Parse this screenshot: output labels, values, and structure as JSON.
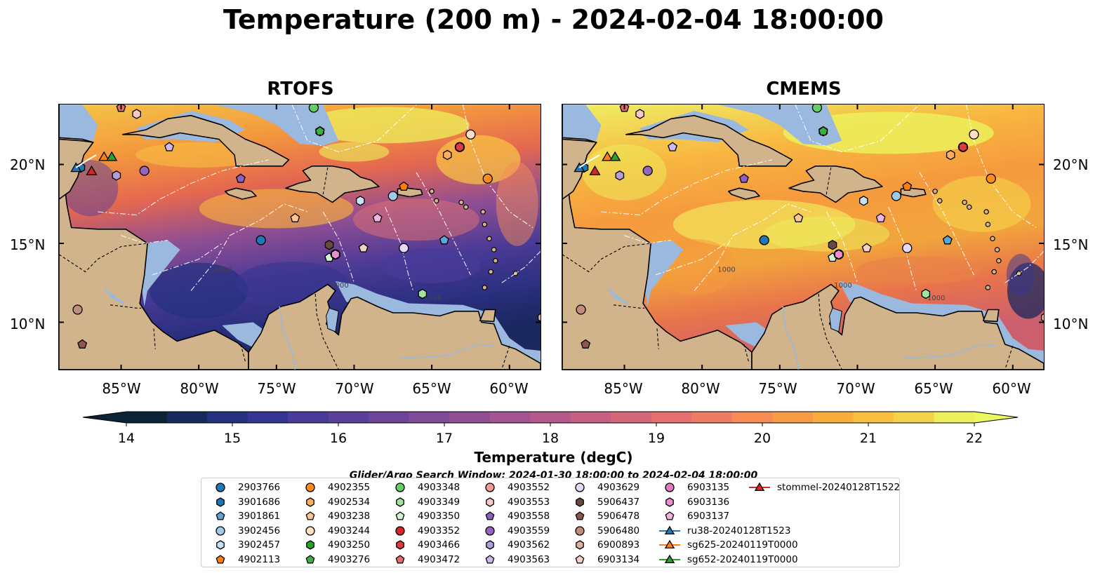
{
  "title": "Temperature (200 m) - 2024-02-04 18:00:00",
  "panels": [
    {
      "title": "RTOFS",
      "scheme": "rtofs"
    },
    {
      "title": "CMEMS",
      "scheme": "cmems"
    }
  ],
  "lat_labels": [
    "20°N",
    "15°N",
    "10°N"
  ],
  "lon_labels": [
    "85°W",
    "80°W",
    "75°W",
    "70°W",
    "65°W",
    "60°W"
  ],
  "colorbar": {
    "label": "Temperature (degC)",
    "min": 14,
    "max": 22,
    "ticks": [
      "14",
      "15",
      "16",
      "17",
      "18",
      "19",
      "20",
      "21",
      "22"
    ],
    "colors": [
      "#0b2336",
      "#172a5c",
      "#23317f",
      "#353594",
      "#483b9a",
      "#5a3f9b",
      "#6d4499",
      "#7f4a97",
      "#904f94",
      "#a35490",
      "#b5598b",
      "#c65f84",
      "#d5677b",
      "#e27170",
      "#ec7c64",
      "#f58b55",
      "#f89b47",
      "#f9ad3c",
      "#f8c040",
      "#f3d34a",
      "#ecf05c"
    ],
    "extend_low": "#0b2336",
    "extend_high": "#ecf95e"
  },
  "search_window": "Glider/Argo Search Window: 2024-01-30 18:00:00 to 2024-02-04 18:00:00",
  "legend": [
    {
      "label": "2903766",
      "marker": "circle",
      "color": "#1f77b4"
    },
    {
      "label": "3901686",
      "marker": "hexagon",
      "color": "#1f77b4"
    },
    {
      "label": "3901861",
      "marker": "pentagon",
      "color": "#5da5da"
    },
    {
      "label": "3902456",
      "marker": "circle",
      "color": "#9ecae9"
    },
    {
      "label": "3902457",
      "marker": "hexagon",
      "color": "#c6e2f5"
    },
    {
      "label": "4902113",
      "marker": "pentagon",
      "color": "#ff7f0e"
    },
    {
      "label": "4902355",
      "marker": "circle",
      "color": "#ff8c1a"
    },
    {
      "label": "4902534",
      "marker": "hexagon",
      "color": "#ffae5c"
    },
    {
      "label": "4903238",
      "marker": "pentagon",
      "color": "#ffc58a"
    },
    {
      "label": "4903244",
      "marker": "circle",
      "color": "#ffe0c0"
    },
    {
      "label": "4903250",
      "marker": "hexagon",
      "color": "#2ca02c"
    },
    {
      "label": "4903276",
      "marker": "pentagon",
      "color": "#3cb043"
    },
    {
      "label": "4903348",
      "marker": "circle",
      "color": "#66cc66"
    },
    {
      "label": "4903349",
      "marker": "hexagon",
      "color": "#a1e3a1"
    },
    {
      "label": "4903350",
      "marker": "pentagon",
      "color": "#d4f5d4"
    },
    {
      "label": "4903352",
      "marker": "circle",
      "color": "#d62728"
    },
    {
      "label": "4903466",
      "marker": "hexagon",
      "color": "#e03a3a"
    },
    {
      "label": "4903472",
      "marker": "pentagon",
      "color": "#e86a6a"
    },
    {
      "label": "4903552",
      "marker": "circle",
      "color": "#f09a9a"
    },
    {
      "label": "4903553",
      "marker": "hexagon",
      "color": "#f8c9c9"
    },
    {
      "label": "4903558",
      "marker": "pentagon",
      "color": "#8c5fc0"
    },
    {
      "label": "4903559",
      "marker": "circle",
      "color": "#9467bd"
    },
    {
      "label": "4903562",
      "marker": "hexagon",
      "color": "#b39ddb"
    },
    {
      "label": "4903563",
      "marker": "pentagon",
      "color": "#cdb8ee"
    },
    {
      "label": "4903629",
      "marker": "circle",
      "color": "#e6d8f8"
    },
    {
      "label": "5906437",
      "marker": "hexagon",
      "color": "#6b4a3d"
    },
    {
      "label": "5906478",
      "marker": "pentagon",
      "color": "#8c564b"
    },
    {
      "label": "5906480",
      "marker": "circle",
      "color": "#c08c7e"
    },
    {
      "label": "6900893",
      "marker": "hexagon",
      "color": "#ddb0a3"
    },
    {
      "label": "6903134",
      "marker": "pentagon",
      "color": "#f3d1c5"
    },
    {
      "label": "6903135",
      "marker": "circle",
      "color": "#e377c2"
    },
    {
      "label": "6903136",
      "marker": "hexagon",
      "color": "#e98fcf"
    },
    {
      "label": "6903137",
      "marker": "pentagon",
      "color": "#f4b3e0"
    },
    {
      "label": "ru38-20240128T1523",
      "marker": "triangle",
      "color": "#1f77b4"
    },
    {
      "label": "sg625-20240119T0000",
      "marker": "triangle",
      "color": "#ff7f0e"
    },
    {
      "label": "sg652-20240119T0000",
      "marker": "triangle",
      "color": "#2ca02c"
    },
    {
      "label": "stommel-20240128T1522",
      "marker": "triangle",
      "color": "#d62728"
    }
  ],
  "floats": [
    {
      "id": "2903766",
      "lon": -76.0,
      "lat": 15.2
    },
    {
      "id": "3901686",
      "lon": -87.6,
      "lat": 19.8
    },
    {
      "id": "3901861",
      "lon": -64.2,
      "lat": 15.2
    },
    {
      "id": "3902456",
      "lon": -67.5,
      "lat": 18.0
    },
    {
      "id": "3902457",
      "lon": -69.6,
      "lat": 17.7
    },
    {
      "id": "4902113",
      "lon": -66.8,
      "lat": 18.6
    },
    {
      "id": "4902355",
      "lon": -61.4,
      "lat": 19.1
    },
    {
      "id": "4902534",
      "lon": -64.0,
      "lat": 20.6
    },
    {
      "id": "4903238",
      "lon": -73.8,
      "lat": 16.6
    },
    {
      "id": "4903244",
      "lon": -62.5,
      "lat": 21.9
    },
    {
      "id": "4903250",
      "lon": -72.2,
      "lat": 22.1
    },
    {
      "id": "4903276",
      "lon": -72.2,
      "lat": 22.1
    },
    {
      "id": "4903348",
      "lon": -72.6,
      "lat": 23.6
    },
    {
      "id": "4903349",
      "lon": -65.6,
      "lat": 11.8
    },
    {
      "id": "4903350",
      "lon": -71.6,
      "lat": 14.1
    },
    {
      "id": "4903352",
      "lon": -63.2,
      "lat": 21.1
    },
    {
      "id": "4903466",
      "lon": -63.2,
      "lat": 21.1
    },
    {
      "id": "4903472",
      "lon": -85.0,
      "lat": 23.6
    },
    {
      "id": "4903552",
      "lon": -71.2,
      "lat": 14.3
    },
    {
      "id": "4903553",
      "lon": -84.0,
      "lat": 23.2
    },
    {
      "id": "4903558",
      "lon": -77.3,
      "lat": 19.1
    },
    {
      "id": "4903559",
      "lon": -83.5,
      "lat": 19.6
    },
    {
      "id": "4903562",
      "lon": -85.3,
      "lat": 19.3
    },
    {
      "id": "4903563",
      "lon": -81.9,
      "lat": 21.1
    },
    {
      "id": "4903629",
      "lon": -66.8,
      "lat": 14.7
    },
    {
      "id": "5906437",
      "lon": -71.6,
      "lat": 14.9
    },
    {
      "id": "5906478",
      "lon": -87.5,
      "lat": 8.6
    },
    {
      "id": "5906480",
      "lon": -87.8,
      "lat": 10.8
    },
    {
      "id": "6900893",
      "lon": -57.9,
      "lat": 10.3
    },
    {
      "id": "6903134",
      "lon": -69.4,
      "lat": 14.7
    },
    {
      "id": "6903135",
      "lon": -71.2,
      "lat": 14.3
    },
    {
      "id": "6903136",
      "lon": -71.2,
      "lat": 14.3
    },
    {
      "id": "6903137",
      "lon": -68.5,
      "lat": 16.6
    }
  ],
  "gliders": [
    {
      "id": "ru38-20240128T1523",
      "lon": -87.9,
      "lat": 19.8
    },
    {
      "id": "sg625-20240119T0000",
      "lon": -86.1,
      "lat": 20.5
    },
    {
      "id": "sg652-20240119T0000",
      "lon": -85.6,
      "lat": 20.5
    },
    {
      "id": "stommel-20240128T1522",
      "lon": -86.9,
      "lat": 19.6
    }
  ],
  "contour_labels": [
    "1000",
    "1000",
    "1000"
  ]
}
